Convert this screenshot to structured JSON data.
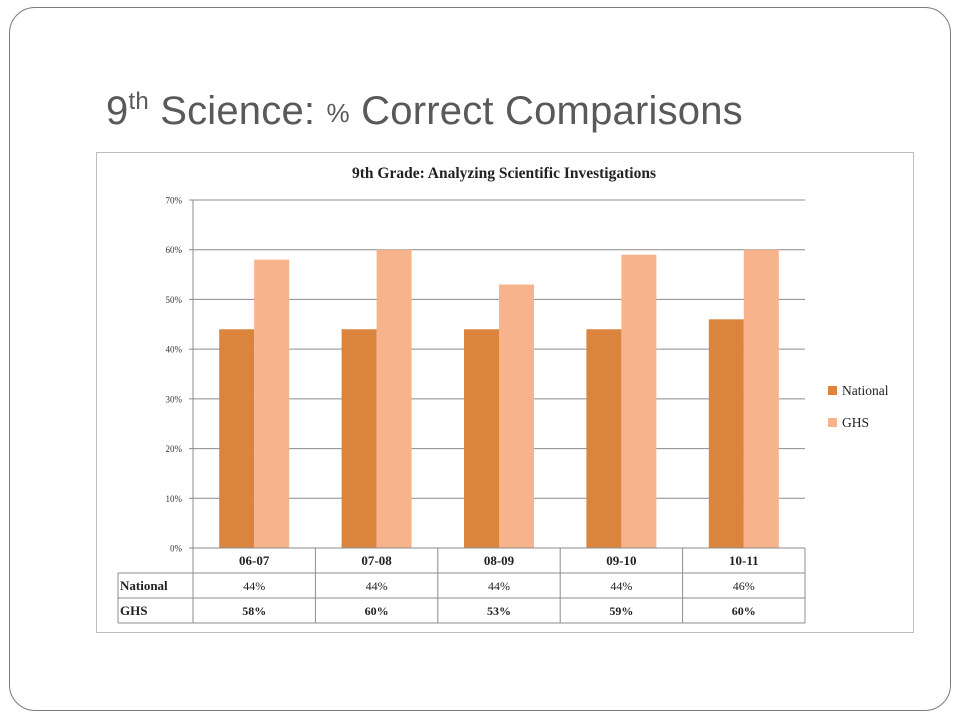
{
  "slide": {
    "title_prefix": "9",
    "title_sup": "th",
    "title_part1": " Science:  ",
    "title_pct": "%",
    "title_part2": " Correct Comparisons"
  },
  "chart_data": {
    "type": "bar",
    "title": "9th Grade: Analyzing Scientific Investigations",
    "categories": [
      "06-07",
      "07-08",
      "08-09",
      "09-10",
      "10-11"
    ],
    "series": [
      {
        "name": "National",
        "values": [
          44,
          44,
          44,
          44,
          46
        ],
        "labels": [
          "44%",
          "44%",
          "44%",
          "44%",
          "46%"
        ],
        "color": "#db843d"
      },
      {
        "name": "GHS",
        "values": [
          58,
          60,
          53,
          59,
          60
        ],
        "labels": [
          "58%",
          "60%",
          "53%",
          "59%",
          "60%"
        ],
        "color": "#f7b38c"
      }
    ],
    "ylim": [
      0,
      70
    ],
    "yticks": [
      "0%",
      "10%",
      "20%",
      "30%",
      "40%",
      "50%",
      "60%",
      "70%"
    ],
    "grid": true,
    "legend_position": "right",
    "data_table": true
  }
}
